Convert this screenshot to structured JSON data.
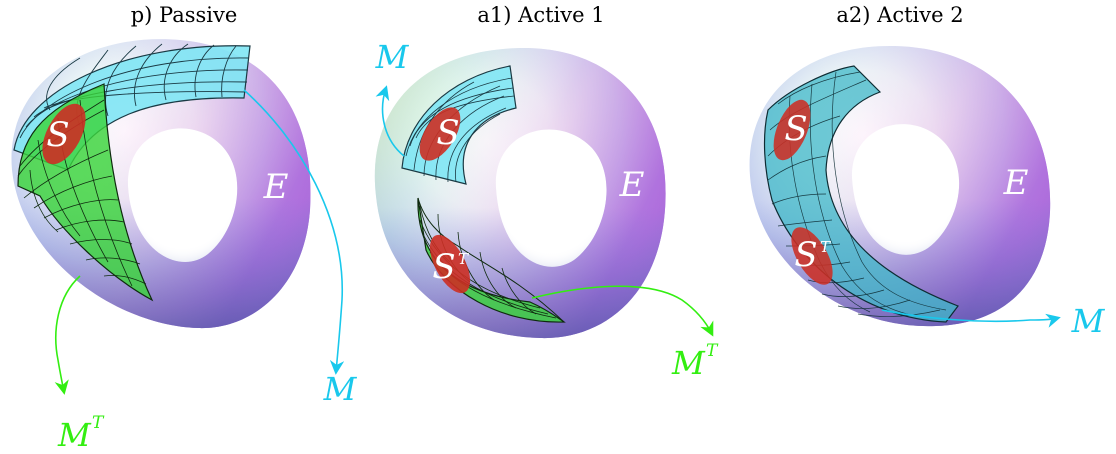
{
  "panels": [
    {
      "title": "p) Passive",
      "s_label": "S",
      "e_label": "E",
      "st_label": "",
      "m_label": "M",
      "mt_label": "M",
      "mt_sup": "T"
    },
    {
      "title": "a1) Active 1",
      "s_label": "S",
      "e_label": "E",
      "st_label": "S",
      "st_sup": "T",
      "m_label": "M",
      "mt_label": "M",
      "mt_sup": "T"
    },
    {
      "title": "a2) Active 2",
      "s_label": "S",
      "e_label": "E",
      "st_label": "S",
      "st_sup": "T",
      "m_label": "M"
    }
  ],
  "colors": {
    "mesh_cyan": "#7fe6f4",
    "mesh_green": "#3bd43b",
    "region_red": "#cc2f24",
    "arrow_cyan": "#19c8ec",
    "arrow_green": "#33ee11"
  }
}
